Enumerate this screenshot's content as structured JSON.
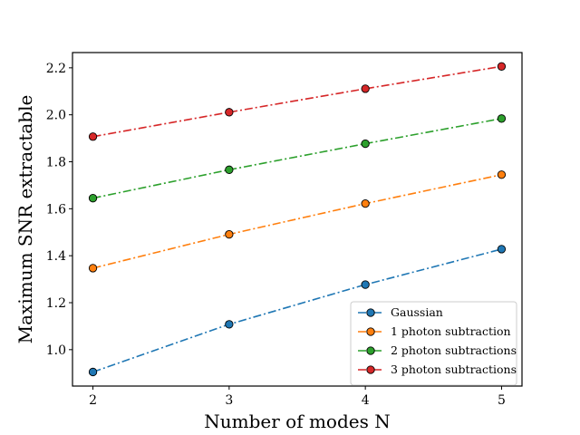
{
  "chart_data": {
    "type": "line",
    "title": "",
    "xlabel": "Number of modes N",
    "ylabel": "Maximum SNR extractable",
    "x": [
      2,
      3,
      4,
      5
    ],
    "xticks": [
      "2",
      "3",
      "4",
      "5"
    ],
    "yticks": [
      "1.0",
      "1.2",
      "1.4",
      "1.6",
      "1.8",
      "2.0",
      "2.2"
    ],
    "xlim": [
      1.85,
      5.15
    ],
    "ylim": [
      0.845,
      2.265
    ],
    "grid": false,
    "legend_position": "bottom-right",
    "line_style": "dash-dot",
    "marker": "circle",
    "series": [
      {
        "name": "Gaussian",
        "color": "#1f77b4",
        "values": [
          0.905,
          1.108,
          1.277,
          1.428
        ]
      },
      {
        "name": "1 photon subtraction",
        "color": "#ff7f0e",
        "values": [
          1.347,
          1.491,
          1.622,
          1.745
        ]
      },
      {
        "name": "2 photon subtractions",
        "color": "#2ca02c",
        "values": [
          1.645,
          1.766,
          1.877,
          1.984
        ]
      },
      {
        "name": "3 photon subtractions",
        "color": "#d62728",
        "values": [
          1.907,
          2.011,
          2.111,
          2.206
        ]
      }
    ]
  }
}
